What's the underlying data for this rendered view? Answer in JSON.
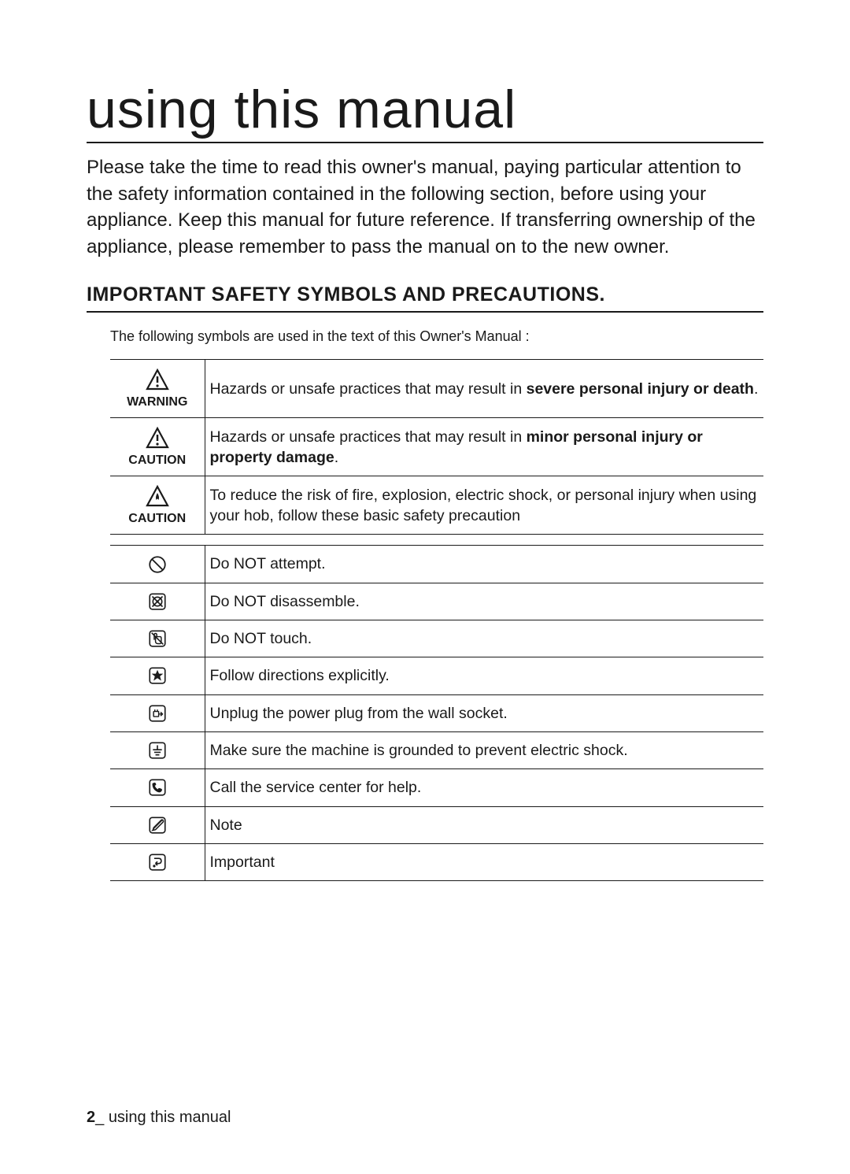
{
  "title": "using this manual",
  "intro": "Please take the time to read this owner's manual, paying particular attention to the safety information contained in the following section, before using your appliance. Keep this manual for future reference. If transferring ownership of the appliance, please remember to pass the manual on to the new owner.",
  "section_heading": "IMPORTANT SAFETY SYMBOLS AND PRECAUTIONS.",
  "symbols_intro": "The following symbols are used in the text of this Owner's Manual :",
  "rows_top": [
    {
      "label": "WARNING",
      "icon": "warning-triangle",
      "desc_pre": "Hazards or unsafe practices that may result in ",
      "desc_bold": "severe personal injury or death",
      "desc_post": "."
    },
    {
      "label": "CAUTION",
      "icon": "warning-triangle",
      "desc_pre": "Hazards or unsafe practices that may result in ",
      "desc_bold": "minor personal injury or property damage",
      "desc_post": "."
    },
    {
      "label": "CAUTION",
      "icon": "fire-triangle",
      "desc_pre": "To reduce the risk of fire, explosion, electric shock, or personal injury when using your hob, follow these basic safety precaution",
      "desc_bold": "",
      "desc_post": ""
    }
  ],
  "rows_bottom": [
    {
      "icon": "no-attempt",
      "desc": "Do NOT attempt."
    },
    {
      "icon": "no-disassemble",
      "desc": "Do NOT disassemble."
    },
    {
      "icon": "no-touch",
      "desc": "Do NOT touch."
    },
    {
      "icon": "follow-directions",
      "desc": "Follow directions explicitly."
    },
    {
      "icon": "unplug",
      "desc": "Unplug the power plug from the wall socket."
    },
    {
      "icon": "ground",
      "desc": "Make sure the machine is grounded to prevent electric shock."
    },
    {
      "icon": "call-service",
      "desc": "Call the service center for help."
    },
    {
      "icon": "note",
      "desc": "Note"
    },
    {
      "icon": "important",
      "desc": "Important"
    }
  ],
  "footer": {
    "page_num": "2",
    "separator": "_",
    "section": "using this manual"
  },
  "colors": {
    "text": "#1a1a1a",
    "background": "#ffffff",
    "border": "#1a1a1a"
  },
  "typography": {
    "title_fontsize": 68,
    "intro_fontsize": 24,
    "heading_fontsize": 25,
    "body_fontsize": 19.5,
    "label_fontsize": 16,
    "footer_fontsize": 20
  }
}
